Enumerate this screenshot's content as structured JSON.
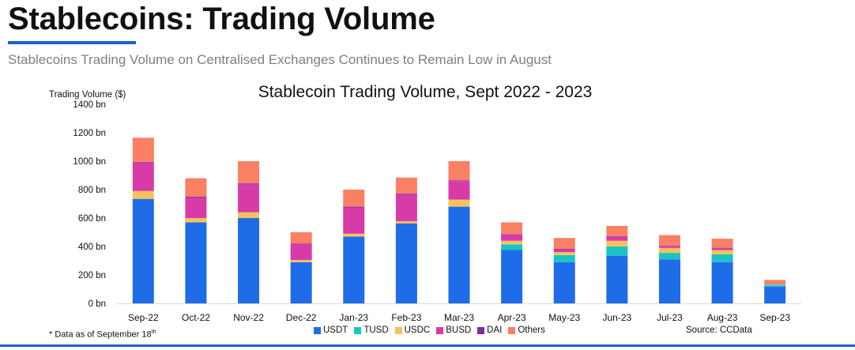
{
  "header": {
    "title": "Stablecoins: Trading Volume",
    "subtitle": "Stablecoins Trading Volume on Centralised Exchanges Continues to Remain Low in August"
  },
  "footnote": {
    "text": "* Data as of September 18",
    "sup": "th"
  },
  "source": "Source: CCData",
  "colors": {
    "accent": "#1f5fcf",
    "USDT": "#1f6ce8",
    "TUSD": "#19c4c4",
    "USDC": "#f7c25a",
    "BUSD": "#d63ba8",
    "DAI": "#7a2fa5",
    "Others": "#fa8064"
  },
  "chart_data": {
    "type": "bar",
    "stacked": true,
    "title": "Stablecoin Trading Volume, Sept 2022 - 2023",
    "ylabel": "Trading Volume ($)",
    "xlabel": "",
    "ylim": [
      0,
      1400
    ],
    "yticks": [
      0,
      200,
      400,
      600,
      800,
      1000,
      1200,
      1400
    ],
    "ytick_labels": [
      "0 bn",
      "200 bn",
      "400 bn",
      "600 bn",
      "800 bn",
      "1000 bn",
      "1200 bn",
      "1400 bn"
    ],
    "grid": false,
    "legend_position": "bottom",
    "categories": [
      "Sep-22",
      "Oct-22",
      "Nov-22",
      "Dec-22",
      "Jan-23",
      "Feb-23",
      "Mar-23",
      "Apr-23",
      "May-23",
      "Jun-23",
      "Jul-23",
      "Aug-23",
      "Sep-23"
    ],
    "series": [
      {
        "name": "USDT",
        "values": [
          735,
          570,
          600,
          290,
          470,
          563,
          680,
          375,
          290,
          335,
          310,
          290,
          118
        ]
      },
      {
        "name": "TUSD",
        "values": [
          0,
          0,
          0,
          0,
          0,
          0,
          0,
          40,
          50,
          65,
          45,
          55,
          12
        ]
      },
      {
        "name": "USDC",
        "values": [
          55,
          30,
          40,
          15,
          20,
          15,
          50,
          25,
          20,
          40,
          35,
          30,
          5
        ]
      },
      {
        "name": "BUSD",
        "values": [
          200,
          145,
          200,
          115,
          185,
          190,
          130,
          45,
          20,
          30,
          15,
          15,
          3
        ]
      },
      {
        "name": "DAI",
        "values": [
          5,
          5,
          5,
          2,
          5,
          5,
          5,
          3,
          5,
          3,
          2,
          2,
          1
        ]
      },
      {
        "name": "Others",
        "values": [
          170,
          130,
          155,
          78,
          120,
          112,
          135,
          82,
          75,
          72,
          73,
          63,
          26
        ]
      }
    ]
  }
}
